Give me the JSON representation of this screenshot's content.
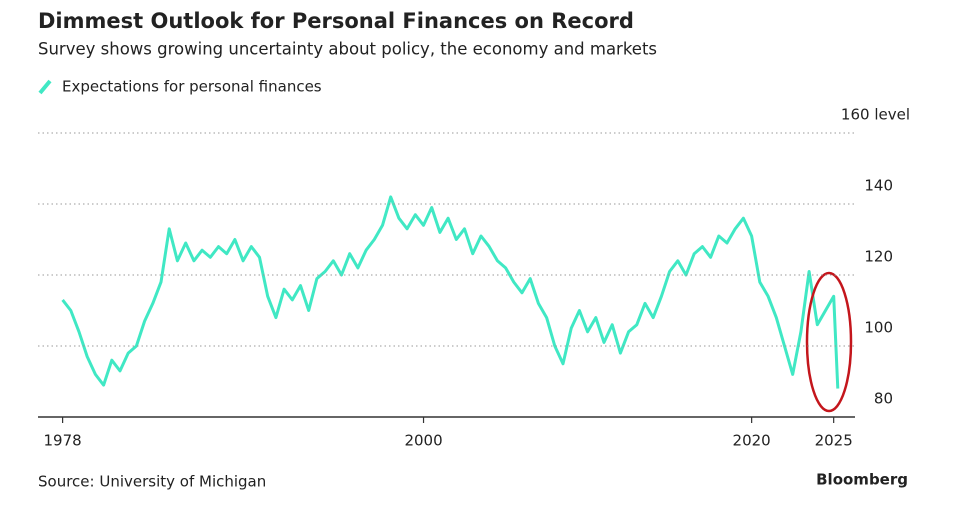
{
  "chart_data": {
    "type": "line",
    "title": "Dimmest Outlook for Personal Finances on Record",
    "subtitle": "Survey shows growing uncertainty about policy, the economy and markets",
    "source": "Source: University of Michigan",
    "brand": "Bloomberg",
    "x": [
      1978,
      1978.5,
      1979,
      1979.5,
      1980,
      1980.5,
      1981,
      1981.5,
      1982,
      1982.5,
      1983,
      1983.5,
      1984,
      1984.5,
      1985,
      1985.5,
      1986,
      1986.5,
      1987,
      1987.5,
      1988,
      1988.5,
      1989,
      1989.5,
      1990,
      1990.5,
      1991,
      1991.5,
      1992,
      1992.5,
      1993,
      1993.5,
      1994,
      1994.5,
      1995,
      1995.5,
      1996,
      1996.5,
      1997,
      1997.5,
      1998,
      1998.5,
      1999,
      1999.5,
      2000,
      2000.5,
      2001,
      2001.5,
      2002,
      2002.5,
      2003,
      2003.5,
      2004,
      2004.5,
      2005,
      2005.5,
      2006,
      2006.5,
      2007,
      2007.5,
      2008,
      2008.5,
      2009,
      2009.5,
      2010,
      2010.5,
      2011,
      2011.5,
      2012,
      2012.5,
      2013,
      2013.5,
      2014,
      2014.5,
      2015,
      2015.5,
      2016,
      2016.5,
      2017,
      2017.5,
      2018,
      2018.5,
      2019,
      2019.5,
      2020,
      2020.5,
      2021,
      2021.5,
      2022,
      2022.5,
      2023,
      2023.5,
      2024,
      2024.5,
      2025,
      2025.25
    ],
    "series": [
      {
        "name": "Expectations for personal finances",
        "color": "#40e8c4",
        "values": [
          113,
          110,
          104,
          97,
          92,
          89,
          96,
          93,
          98,
          100,
          107,
          112,
          118,
          133,
          124,
          129,
          124,
          127,
          125,
          128,
          126,
          130,
          124,
          128,
          125,
          114,
          108,
          116,
          113,
          117,
          110,
          119,
          121,
          124,
          120,
          126,
          122,
          127,
          130,
          134,
          142,
          136,
          133,
          137,
          134,
          139,
          132,
          136,
          130,
          133,
          126,
          131,
          128,
          124,
          122,
          118,
          115,
          119,
          112,
          108,
          100,
          95,
          105,
          110,
          104,
          108,
          101,
          106,
          98,
          104,
          106,
          112,
          108,
          114,
          121,
          124,
          120,
          126,
          128,
          125,
          131,
          129,
          133,
          136,
          131,
          118,
          114,
          108,
          100,
          92,
          104,
          121,
          106,
          110,
          114,
          88
        ]
      }
    ],
    "xlim": [
      1976.5,
      2026.3
    ],
    "xticks": [
      1978,
      2000,
      2020,
      2025
    ],
    "ylim": [
      80,
      160
    ],
    "yticks": [
      80,
      100,
      120,
      140,
      {
        "value": 160,
        "label": "160 level"
      }
    ],
    "grid": true
  }
}
